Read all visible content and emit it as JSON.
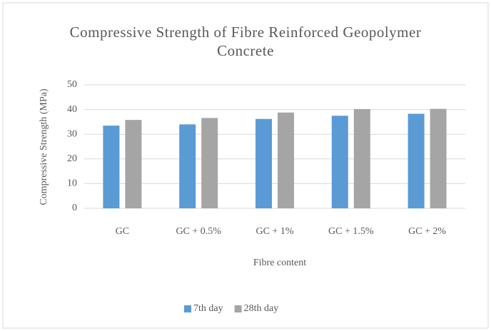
{
  "chart_data": {
    "type": "bar",
    "title": "Compressive Strength of Fibre Reinforced Geopolymer Concrete",
    "x_label": "Fibre content",
    "y_label": "Compressive Strength (MPa)",
    "categories": [
      "GC",
      "GC + 0.5%",
      "GC + 1%",
      "GC + 1.5%",
      "GC + 2%"
    ],
    "series": [
      {
        "name": "7th day",
        "color": "#5b9bd5",
        "values": [
          33.5,
          34,
          36.2,
          37.5,
          38.3
        ]
      },
      {
        "name": "28th day",
        "color": "#a5a5a5",
        "values": [
          35.8,
          36.6,
          38.8,
          40.2,
          40.3
        ]
      }
    ],
    "ylim": [
      0,
      50
    ],
    "yticks": [
      0,
      10,
      20,
      30,
      40,
      50
    ],
    "grid": true,
    "legend": "bottom"
  }
}
